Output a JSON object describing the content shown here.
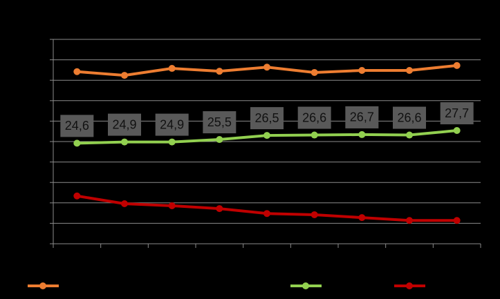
{
  "chart_data": {
    "type": "line",
    "categories": [
      null,
      null,
      null,
      null,
      null,
      null,
      null,
      null,
      null
    ],
    "series": [
      {
        "color": "#ed7d31",
        "values": [
          42.1,
          41.2,
          42.9,
          42.2,
          43.2,
          41.9,
          42.4,
          42.4,
          43.6
        ]
      },
      {
        "color": "#92d050",
        "values": [
          24.6,
          24.9,
          24.9,
          25.5,
          26.5,
          26.6,
          26.7,
          26.6,
          27.7
        ],
        "value_labels": [
          "24,6",
          "24,9",
          "24,9",
          "25,5",
          "26,5",
          "26,6",
          "26,7",
          "26,6",
          "27,7"
        ]
      },
      {
        "color": "#c00000",
        "values": [
          11.7,
          9.8,
          9.3,
          8.6,
          7.4,
          7.1,
          6.4,
          5.7,
          5.7
        ]
      }
    ],
    "ylim": [
      0,
      50
    ],
    "yticks": [
      0,
      5,
      10,
      15,
      20,
      25,
      30,
      35,
      40,
      45,
      50
    ],
    "grid": true
  }
}
